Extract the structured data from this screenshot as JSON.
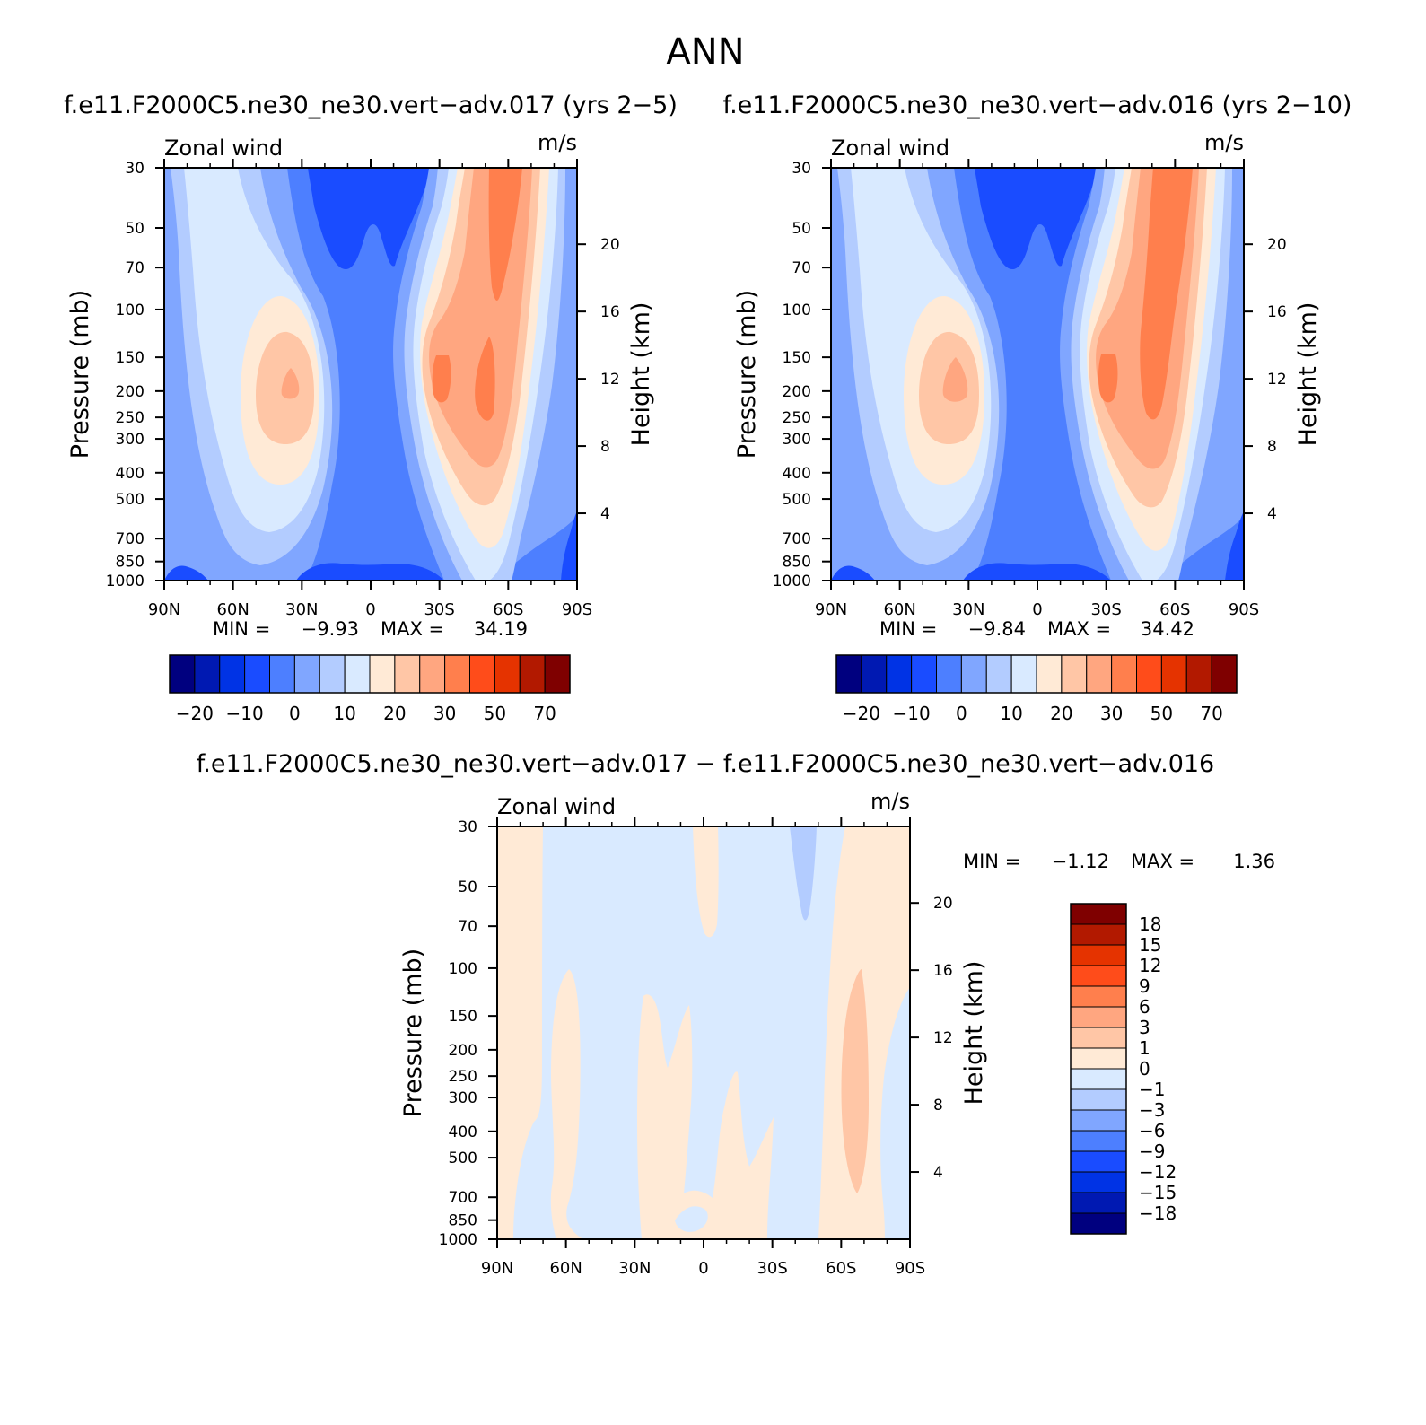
{
  "page_title": "ANN",
  "colors": {
    "zonal_scale": [
      "#00007f",
      "#0019b2",
      "#0033e5",
      "#1a4cff",
      "#4d7fff",
      "#80a6ff",
      "#b3ccff",
      "#d9eaff",
      "#ffead6",
      "#ffc6a6",
      "#ffa680",
      "#ff7f4d",
      "#ff4c1a",
      "#e53300",
      "#b21900",
      "#7f0000"
    ],
    "diff_scale": [
      "#00007f",
      "#0019b2",
      "#0033e5",
      "#1a4cff",
      "#4d7fff",
      "#80a6ff",
      "#b3ccff",
      "#d9eaff",
      "#ffead6",
      "#ffc6a6",
      "#ffa680",
      "#ff7f4d",
      "#ff4c1a",
      "#e53300",
      "#b21900",
      "#7f0000"
    ]
  },
  "panels": [
    {
      "title": "f.e11.F2000C5.ne30_ne30.vert−adv.017 (yrs 2−5)",
      "variable": "Zonal wind",
      "units": "m/s",
      "ylabel": "Pressure (mb)",
      "ylabel_right": "Height (km)",
      "min_label": "MIN =",
      "min_value": "−9.93",
      "max_label": "MAX =",
      "max_value": "34.19"
    },
    {
      "title": "f.e11.F2000C5.ne30_ne30.vert−adv.016 (yrs 2−10)",
      "variable": "Zonal wind",
      "units": "m/s",
      "ylabel": "Pressure (mb)",
      "ylabel_right": "Height (km)",
      "min_label": "MIN =",
      "min_value": "−9.84",
      "max_label": "MAX =",
      "max_value": "34.42"
    },
    {
      "title": "f.e11.F2000C5.ne30_ne30.vert−adv.017 − f.e11.F2000C5.ne30_ne30.vert−adv.016",
      "variable": "Zonal wind",
      "units": "m/s",
      "ylabel": "Pressure (mb)",
      "ylabel_right": "Height (km)",
      "min_label": "MIN =",
      "min_value": "−1.12",
      "max_label": "MAX =",
      "max_value": "1.36"
    }
  ],
  "chart_data": [
    {
      "type": "heatmap",
      "panel": 0,
      "x_ticks": [
        "90N",
        "60N",
        "30N",
        "0",
        "30S",
        "60S",
        "90S"
      ],
      "x_range": [
        90,
        -90
      ],
      "y_ticks": [
        "30",
        "50",
        "70",
        "100",
        "150",
        "200",
        "250",
        "300",
        "400",
        "500",
        "700",
        "850",
        "1000"
      ],
      "y_range_mb": [
        30,
        1000
      ],
      "y_scale": "log",
      "y_right_ticks": [
        "20",
        "16",
        "12",
        "8",
        "4"
      ],
      "colorbar_ticks": [
        "−20",
        "−10",
        "0",
        "10",
        "20",
        "30",
        "50",
        "70"
      ],
      "colorbar_levels": 16,
      "approx_regions": [
        {
          "feature": "easterlies",
          "center_lat": 0,
          "pressure_mb": [
            30,
            1000
          ],
          "value_range": [
            -10,
            -5
          ]
        },
        {
          "feature": "northern jet",
          "center_lat": 35,
          "pressure_mb": 200,
          "value": 25
        },
        {
          "feature": "southern jet",
          "center_lat": -48,
          "pressure_mb": 200,
          "value": 34
        }
      ]
    },
    {
      "type": "heatmap",
      "panel": 1,
      "x_ticks": [
        "90N",
        "60N",
        "30N",
        "0",
        "30S",
        "60S",
        "90S"
      ],
      "x_range": [
        90,
        -90
      ],
      "y_ticks": [
        "30",
        "50",
        "70",
        "100",
        "150",
        "200",
        "250",
        "300",
        "400",
        "500",
        "700",
        "850",
        "1000"
      ],
      "y_range_mb": [
        30,
        1000
      ],
      "y_scale": "log",
      "y_right_ticks": [
        "20",
        "16",
        "12",
        "8",
        "4"
      ],
      "colorbar_ticks": [
        "−20",
        "−10",
        "0",
        "10",
        "20",
        "30",
        "50",
        "70"
      ],
      "colorbar_levels": 16,
      "approx_regions": [
        {
          "feature": "easterlies",
          "center_lat": 0,
          "pressure_mb": [
            30,
            1000
          ],
          "value_range": [
            -10,
            -5
          ]
        },
        {
          "feature": "northern jet",
          "center_lat": 33,
          "pressure_mb": 200,
          "value": 25
        },
        {
          "feature": "southern jet",
          "center_lat": -48,
          "pressure_mb": 200,
          "value": 34
        }
      ]
    },
    {
      "type": "heatmap",
      "panel": 2,
      "x_ticks": [
        "90N",
        "60N",
        "30N",
        "0",
        "30S",
        "60S",
        "90S"
      ],
      "x_range": [
        90,
        -90
      ],
      "y_ticks": [
        "30",
        "50",
        "70",
        "100",
        "150",
        "200",
        "250",
        "300",
        "400",
        "500",
        "700",
        "850",
        "1000"
      ],
      "y_range_mb": [
        30,
        1000
      ],
      "y_scale": "log",
      "y_right_ticks": [
        "20",
        "16",
        "12",
        "8",
        "4"
      ],
      "colorbar_ticks": [
        "18",
        "15",
        "12",
        "9",
        "6",
        "3",
        "1",
        "0",
        "−1",
        "−3",
        "−6",
        "−9",
        "−12",
        "−15",
        "−18"
      ],
      "colorbar_levels": 16,
      "approx_regions": [
        {
          "feature": "positive band",
          "lat_range": [
            90,
            70
          ],
          "value_range": [
            0,
            1
          ]
        },
        {
          "feature": "positive band",
          "lat_range": [
            -60,
            -80
          ],
          "value_range": [
            0,
            1.36
          ]
        },
        {
          "feature": "negative region",
          "lat_range": [
            -36,
            -48
          ],
          "pressure_mb": [
            30,
            80
          ],
          "value_range": [
            -3,
            -1
          ]
        }
      ]
    }
  ]
}
